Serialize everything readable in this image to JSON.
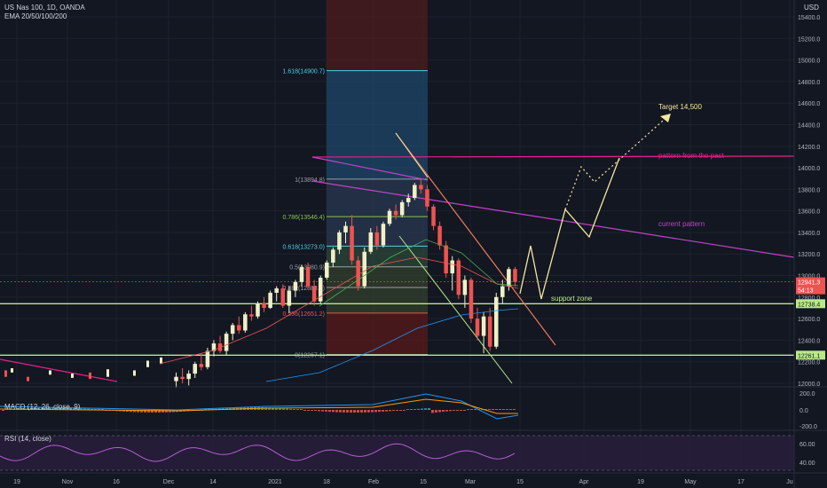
{
  "header": {
    "symbol_line": "US Nas 100, 1D, OANDA",
    "indicator_line": "EMA 20/50/100/200",
    "currency": "USD"
  },
  "panes": {
    "macd_label": "MACD (12, 26, close, 9)",
    "rsi_label": "RSI (14, close)"
  },
  "price_axis": {
    "ticks": [
      "15400.0",
      "15200.0",
      "15000.0",
      "14800.0",
      "14600.0",
      "14400.0",
      "14200.0",
      "14000.0",
      "13800.0",
      "13600.0",
      "13400.0",
      "13200.0",
      "13000.0",
      "12800.0",
      "12600.0",
      "12400.0",
      "12200.0",
      "12000.0"
    ],
    "last_price": "12941.3",
    "countdown": "54:13",
    "support_upper": "12738.4",
    "support_lower": "12261.1"
  },
  "macd_axis": {
    "ticks": [
      "200.0",
      "0.0",
      "-200.0"
    ]
  },
  "rsi_axis": {
    "ticks": [
      "60.00",
      "40.00"
    ]
  },
  "time_axis": {
    "ticks": [
      "19",
      "Nov",
      "16",
      "Dec",
      "14",
      "2021",
      "18",
      "Feb",
      "15",
      "Mar",
      "15",
      "Apr",
      "19",
      "May",
      "17",
      "Ju"
    ]
  },
  "fib_levels": [
    {
      "label": "1.618(14900.7)"
    },
    {
      "label": "1(13894.8)"
    },
    {
      "label": "0.786(13546.4)"
    },
    {
      "label": "0.618(13273.0)"
    },
    {
      "label": "0.5(13080.9)"
    },
    {
      "label": "0.382(12888.8)"
    },
    {
      "label": "0.236(12651.2)"
    },
    {
      "label": "0(12267.1)"
    }
  ],
  "annotations": {
    "target": "Target 14,500",
    "past_pattern": "pattern from the past",
    "current_pattern": "current pattern",
    "support": "support zone"
  },
  "colors": {
    "background": "#131722",
    "up_candle": "#f0f0c8",
    "down_candle": "#ef5350",
    "support_line": "#b8e986",
    "pattern_line": "#e91e8c",
    "projection": "#f5e6a0",
    "fib_upper_fill": "#1e4a6e",
    "fib_lower_fill": "#5c1a1a",
    "rsi_fill": "#2a1e3e"
  },
  "chart_data": {
    "type": "candlestick",
    "title": "US Nas 100, 1D, OANDA",
    "ylim": [
      12000,
      15500
    ],
    "candles": [
      {
        "o": 12020,
        "h": 12100,
        "l": 11960,
        "c": 12060
      },
      {
        "o": 12060,
        "h": 12140,
        "l": 12000,
        "c": 12040
      },
      {
        "o": 12040,
        "h": 12120,
        "l": 11980,
        "c": 12090
      },
      {
        "o": 12090,
        "h": 12200,
        "l": 12050,
        "c": 12180
      },
      {
        "o": 12180,
        "h": 12280,
        "l": 12120,
        "c": 12150
      },
      {
        "o": 12150,
        "h": 12330,
        "l": 12130,
        "c": 12300
      },
      {
        "o": 12300,
        "h": 12400,
        "l": 12250,
        "c": 12370
      },
      {
        "o": 12370,
        "h": 12440,
        "l": 12280,
        "c": 12300
      },
      {
        "o": 12300,
        "h": 12480,
        "l": 12260,
        "c": 12460
      },
      {
        "o": 12460,
        "h": 12560,
        "l": 12400,
        "c": 12540
      },
      {
        "o": 12540,
        "h": 12620,
        "l": 12460,
        "c": 12490
      },
      {
        "o": 12490,
        "h": 12660,
        "l": 12470,
        "c": 12640
      },
      {
        "o": 12640,
        "h": 12720,
        "l": 12580,
        "c": 12620
      },
      {
        "o": 12620,
        "h": 12760,
        "l": 12600,
        "c": 12740
      },
      {
        "o": 12740,
        "h": 12800,
        "l": 12660,
        "c": 12700
      },
      {
        "o": 12700,
        "h": 12860,
        "l": 12690,
        "c": 12840
      },
      {
        "o": 12840,
        "h": 12900,
        "l": 12760,
        "c": 12880
      },
      {
        "o": 12880,
        "h": 12920,
        "l": 12700,
        "c": 12720
      },
      {
        "o": 12720,
        "h": 12900,
        "l": 12650,
        "c": 12860
      },
      {
        "o": 12860,
        "h": 12960,
        "l": 12800,
        "c": 12940
      },
      {
        "o": 12940,
        "h": 13100,
        "l": 12900,
        "c": 13080
      },
      {
        "o": 13080,
        "h": 13120,
        "l": 12880,
        "c": 12900
      },
      {
        "o": 12900,
        "h": 12960,
        "l": 12720,
        "c": 12760
      },
      {
        "o": 12760,
        "h": 13000,
        "l": 12740,
        "c": 12980
      },
      {
        "o": 12980,
        "h": 13140,
        "l": 12960,
        "c": 13120
      },
      {
        "o": 13120,
        "h": 13260,
        "l": 13080,
        "c": 13240
      },
      {
        "o": 13240,
        "h": 13420,
        "l": 13200,
        "c": 13400
      },
      {
        "o": 13400,
        "h": 13500,
        "l": 13300,
        "c": 13460
      },
      {
        "o": 13460,
        "h": 13560,
        "l": 13100,
        "c": 13140
      },
      {
        "o": 13140,
        "h": 13180,
        "l": 12860,
        "c": 12900
      },
      {
        "o": 12900,
        "h": 13260,
        "l": 12880,
        "c": 13220
      },
      {
        "o": 13220,
        "h": 13440,
        "l": 13200,
        "c": 13400
      },
      {
        "o": 13400,
        "h": 13460,
        "l": 13240,
        "c": 13280
      },
      {
        "o": 13280,
        "h": 13500,
        "l": 13260,
        "c": 13480
      },
      {
        "o": 13480,
        "h": 13620,
        "l": 13460,
        "c": 13600
      },
      {
        "o": 13600,
        "h": 13660,
        "l": 13520,
        "c": 13560
      },
      {
        "o": 13560,
        "h": 13700,
        "l": 13540,
        "c": 13680
      },
      {
        "o": 13680,
        "h": 13760,
        "l": 13640,
        "c": 13720
      },
      {
        "o": 13720,
        "h": 13860,
        "l": 13700,
        "c": 13840
      },
      {
        "o": 13840,
        "h": 13895,
        "l": 13760,
        "c": 13800
      },
      {
        "o": 13800,
        "h": 13840,
        "l": 13600,
        "c": 13640
      },
      {
        "o": 13640,
        "h": 13660,
        "l": 13420,
        "c": 13460
      },
      {
        "o": 13460,
        "h": 13500,
        "l": 13240,
        "c": 13280
      },
      {
        "o": 13280,
        "h": 13320,
        "l": 12980,
        "c": 13020
      },
      {
        "o": 13020,
        "h": 13180,
        "l": 12860,
        "c": 13140
      },
      {
        "o": 13140,
        "h": 13160,
        "l": 12780,
        "c": 12820
      },
      {
        "o": 12820,
        "h": 13000,
        "l": 12700,
        "c": 12960
      },
      {
        "o": 12960,
        "h": 12980,
        "l": 12560,
        "c": 12600
      },
      {
        "o": 12600,
        "h": 12700,
        "l": 12400,
        "c": 12440
      },
      {
        "o": 12440,
        "h": 12660,
        "l": 12280,
        "c": 12620
      },
      {
        "o": 12620,
        "h": 12700,
        "l": 12300,
        "c": 12340
      },
      {
        "o": 12340,
        "h": 12840,
        "l": 12320,
        "c": 12800
      },
      {
        "o": 12800,
        "h": 12960,
        "l": 12740,
        "c": 12900
      },
      {
        "o": 12900,
        "h": 13080,
        "l": 12860,
        "c": 13060
      },
      {
        "o": 13060,
        "h": 13080,
        "l": 12900,
        "c": 12941
      }
    ]
  }
}
